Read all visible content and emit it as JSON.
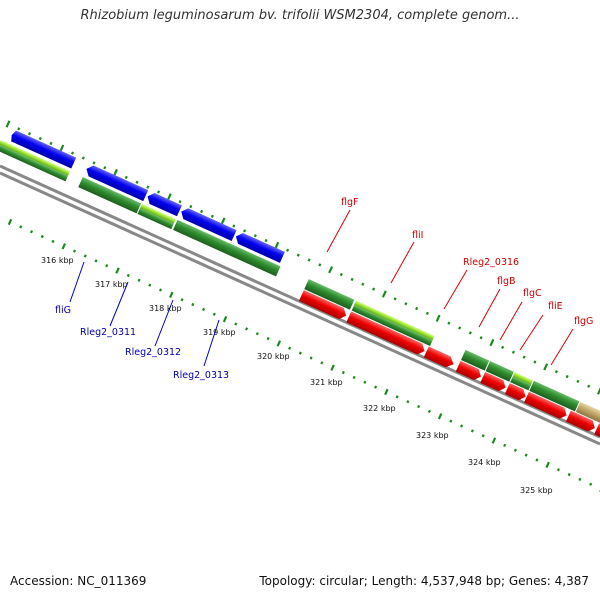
{
  "title": "Rhizobium leguminosarum bv. trifolii WSM2304, complete genom...",
  "footer": {
    "accession": "Accession: NC_011369",
    "topology": "Topology: circular; Length: 4,537,948 bp; Genes: 4,387"
  },
  "colors": {
    "forward_cds": "#ee0000",
    "reverse_cds": "#0000ee",
    "gene_forward": "#2e8b2e",
    "gene_light": "#9be635",
    "gene_tan": "#c2a86a",
    "backbone": "#888888",
    "tick": "#1e8a1e",
    "label_forward": "#cc0000",
    "label_reverse": "#0000aa"
  },
  "scale_ticks": [
    "316 kbp",
    "317 kbp",
    "318 kbp",
    "319 kbp",
    "320 kbp",
    "321 kbp",
    "322 kbp",
    "323 kbp",
    "324 kbp",
    "325 kbp"
  ],
  "reverse_genes": [
    "fliG",
    "Rleg2_0311",
    "Rleg2_0312",
    "Rleg2_0313"
  ],
  "forward_genes": [
    "flgF",
    "fliI",
    "Rleg2_0316",
    "flgB",
    "flgC",
    "fliE",
    "flgG"
  ]
}
